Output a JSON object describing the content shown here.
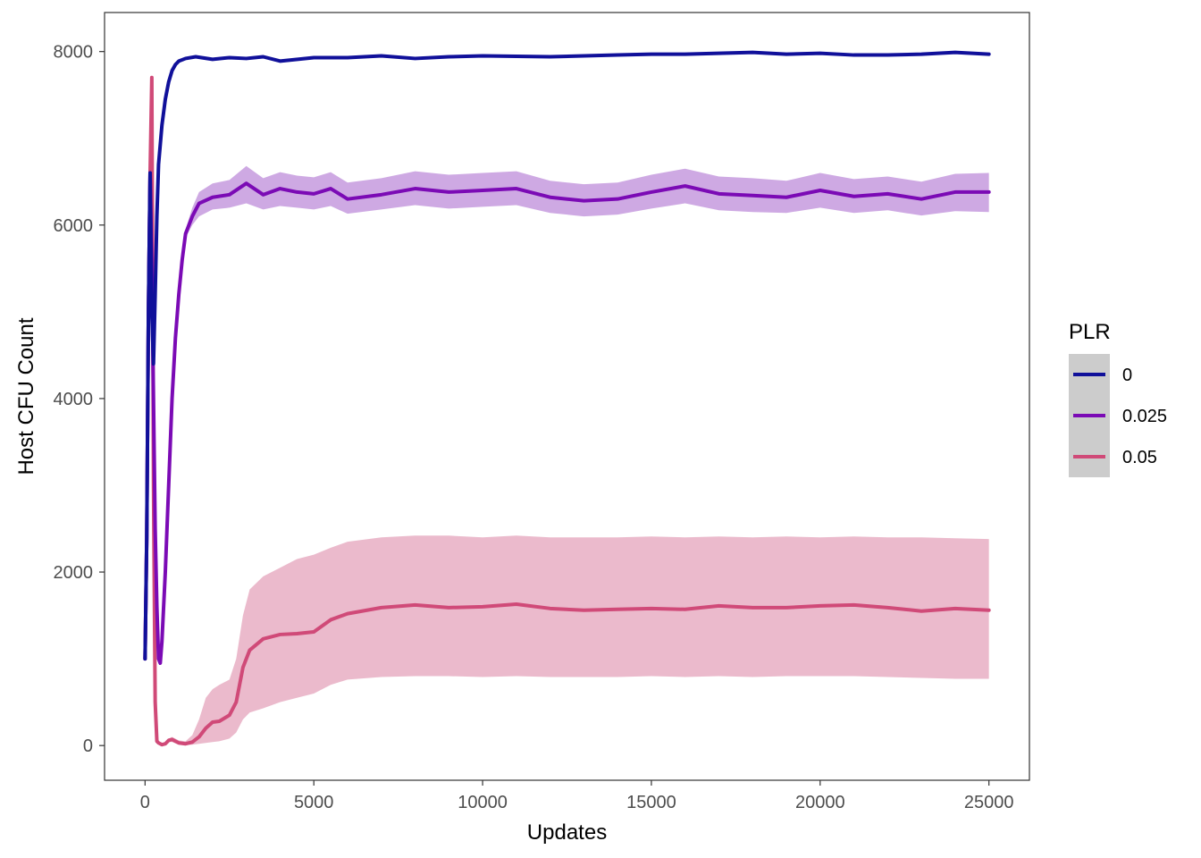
{
  "chart_data": {
    "type": "line",
    "xlabel": "Updates",
    "ylabel": "Host CFU Count",
    "xlim": [
      -1200,
      26200
    ],
    "ylim": [
      -400,
      8450
    ],
    "x_ticks": [
      0,
      5000,
      10000,
      15000,
      20000,
      25000
    ],
    "y_ticks": [
      0,
      2000,
      4000,
      6000,
      8000
    ],
    "x_tick_labels": [
      "0",
      "5000",
      "10000",
      "15000",
      "20000",
      "25000"
    ],
    "y_tick_labels": [
      "0",
      "2000",
      "4000",
      "6000",
      "8000"
    ],
    "grid": false,
    "legend": {
      "title": "PLR",
      "position": "right"
    },
    "series": [
      {
        "name": "0",
        "color": "#10109a",
        "ribbon_color": "#8f8fd0",
        "x": [
          0,
          50,
          100,
          150,
          200,
          250,
          300,
          350,
          400,
          500,
          600,
          700,
          800,
          900,
          1000,
          1200,
          1500,
          2000,
          2500,
          3000,
          3500,
          4000,
          5000,
          6000,
          7000,
          8000,
          9000,
          10000,
          12000,
          14000,
          15000,
          16000,
          17000,
          18000,
          19000,
          20000,
          21000,
          22000,
          23000,
          24000,
          25000
        ],
        "values": [
          1000,
          2400,
          5000,
          6600,
          5000,
          4400,
          5200,
          6100,
          6700,
          7150,
          7450,
          7650,
          7780,
          7850,
          7890,
          7920,
          7940,
          7910,
          7930,
          7920,
          7940,
          7890,
          7930,
          7930,
          7950,
          7920,
          7940,
          7950,
          7940,
          7960,
          7970,
          7970,
          7980,
          7990,
          7970,
          7980,
          7960,
          7960,
          7970,
          7990,
          7970
        ],
        "ribbon_lower": [
          1000,
          2400,
          5000,
          6600,
          5000,
          4400,
          5200,
          6100,
          6700,
          7140,
          7440,
          7640,
          7770,
          7840,
          7880,
          7910,
          7930,
          7900,
          7920,
          7910,
          7930,
          7880,
          7920,
          7920,
          7940,
          7910,
          7930,
          7940,
          7930,
          7950,
          7960,
          7960,
          7970,
          7980,
          7960,
          7970,
          7950,
          7950,
          7960,
          7980,
          7960
        ],
        "ribbon_upper": [
          1000,
          2400,
          5000,
          6600,
          5000,
          4400,
          5200,
          6100,
          6700,
          7160,
          7460,
          7660,
          7790,
          7860,
          7900,
          7930,
          7950,
          7920,
          7940,
          7930,
          7950,
          7900,
          7940,
          7940,
          7960,
          7930,
          7950,
          7960,
          7950,
          7970,
          7980,
          7980,
          7990,
          8000,
          7980,
          7990,
          7970,
          7970,
          7980,
          8000,
          7980
        ]
      },
      {
        "name": "0.025",
        "color": "#7b0ab5",
        "ribbon_color": "#c9a0e0",
        "x": [
          0,
          50,
          100,
          150,
          200,
          250,
          300,
          350,
          400,
          450,
          500,
          600,
          700,
          800,
          900,
          1000,
          1100,
          1200,
          1400,
          1600,
          2000,
          2500,
          3000,
          3500,
          4000,
          4500,
          5000,
          5500,
          6000,
          7000,
          8000,
          9000,
          10000,
          11000,
          12000,
          13000,
          14000,
          15000,
          16000,
          17000,
          18000,
          19000,
          20000,
          21000,
          22000,
          23000,
          24000,
          25000
        ],
        "values": [
          1000,
          2400,
          5000,
          6600,
          5500,
          4000,
          2500,
          1600,
          1000,
          950,
          1200,
          2000,
          3000,
          4000,
          4700,
          5200,
          5600,
          5900,
          6100,
          6250,
          6320,
          6350,
          6480,
          6350,
          6420,
          6380,
          6360,
          6420,
          6300,
          6350,
          6420,
          6380,
          6400,
          6420,
          6320,
          6280,
          6300,
          6380,
          6450,
          6360,
          6340,
          6320,
          6400,
          6330,
          6360,
          6300,
          6380,
          6380
        ],
        "ribbon_lower": [
          1000,
          2400,
          5000,
          6600,
          5500,
          4000,
          2500,
          1600,
          1000,
          950,
          1200,
          1950,
          2950,
          3950,
          4650,
          5150,
          5550,
          5850,
          6000,
          6100,
          6180,
          6200,
          6250,
          6180,
          6220,
          6200,
          6180,
          6220,
          6130,
          6180,
          6230,
          6190,
          6210,
          6230,
          6140,
          6100,
          6120,
          6190,
          6250,
          6170,
          6150,
          6140,
          6200,
          6140,
          6170,
          6110,
          6160,
          6150
        ],
        "ribbon_upper": [
          1000,
          2400,
          5000,
          6600,
          5500,
          4000,
          2500,
          1600,
          1000,
          950,
          1200,
          2050,
          3050,
          4050,
          4750,
          5250,
          5650,
          5950,
          6200,
          6380,
          6480,
          6520,
          6680,
          6540,
          6610,
          6570,
          6550,
          6610,
          6490,
          6540,
          6620,
          6580,
          6600,
          6620,
          6510,
          6470,
          6490,
          6580,
          6650,
          6560,
          6540,
          6510,
          6600,
          6530,
          6560,
          6500,
          6590,
          6600
        ]
      },
      {
        "name": "0.05",
        "color": "#d04a78",
        "ribbon_color": "#e9b3c6",
        "x": [
          0,
          50,
          100,
          150,
          200,
          250,
          300,
          350,
          400,
          500,
          600,
          700,
          800,
          1000,
          1200,
          1400,
          1600,
          1800,
          2000,
          2200,
          2500,
          2700,
          2900,
          3100,
          3500,
          4000,
          4500,
          5000,
          5500,
          6000,
          7000,
          8000,
          9000,
          10000,
          11000,
          12000,
          13000,
          14000,
          15000,
          16000,
          17000,
          18000,
          19000,
          20000,
          21000,
          22000,
          23000,
          24000,
          25000
        ],
        "values": [
          1000,
          2400,
          5000,
          6600,
          7700,
          3000,
          500,
          50,
          30,
          10,
          20,
          60,
          70,
          30,
          20,
          40,
          100,
          200,
          270,
          280,
          350,
          500,
          900,
          1100,
          1230,
          1280,
          1290,
          1310,
          1450,
          1520,
          1590,
          1620,
          1590,
          1600,
          1630,
          1580,
          1560,
          1570,
          1580,
          1570,
          1610,
          1590,
          1590,
          1610,
          1620,
          1590,
          1550,
          1580,
          1560
        ],
        "ribbon_lower": [
          1000,
          2400,
          5000,
          6600,
          7700,
          3000,
          500,
          50,
          30,
          10,
          20,
          40,
          40,
          10,
          5,
          10,
          20,
          30,
          40,
          50,
          80,
          150,
          300,
          380,
          430,
          500,
          550,
          600,
          700,
          760,
          790,
          800,
          800,
          790,
          800,
          790,
          790,
          790,
          800,
          790,
          800,
          790,
          800,
          800,
          800,
          790,
          780,
          770,
          770
        ],
        "ribbon_upper": [
          1000,
          2400,
          5000,
          6600,
          7700,
          3000,
          500,
          50,
          30,
          10,
          20,
          80,
          100,
          60,
          50,
          120,
          300,
          550,
          650,
          700,
          760,
          1000,
          1500,
          1800,
          1950,
          2050,
          2150,
          2200,
          2280,
          2350,
          2400,
          2420,
          2420,
          2400,
          2420,
          2400,
          2400,
          2400,
          2410,
          2400,
          2410,
          2400,
          2410,
          2400,
          2410,
          2400,
          2400,
          2390,
          2380
        ]
      }
    ]
  }
}
